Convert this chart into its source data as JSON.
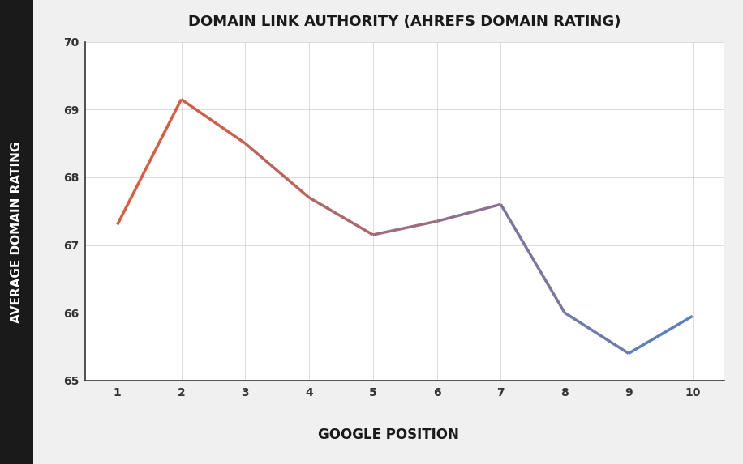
{
  "x": [
    1,
    2,
    3,
    4,
    5,
    6,
    7,
    8,
    9,
    10
  ],
  "y": [
    67.3,
    69.15,
    68.5,
    67.7,
    67.15,
    67.35,
    67.6,
    66.0,
    65.4,
    65.95
  ],
  "title": "DOMAIN LINK AUTHORITY (AHREFS DOMAIN RATING)",
  "xlabel": "GOOGLE POSITION",
  "ylabel": "AVERAGE DOMAIN RATING",
  "ylim": [
    65,
    70
  ],
  "xlim": [
    0.5,
    10.5
  ],
  "yticks": [
    65,
    66,
    67,
    68,
    69,
    70
  ],
  "xticks": [
    1,
    2,
    3,
    4,
    5,
    6,
    7,
    8,
    9,
    10
  ],
  "color_start": "#E05A3A",
  "color_end": "#5B7FBF",
  "bg_outer": "#F0F0F0",
  "bg_plot": "#FFFFFF",
  "left_bar_color": "#1A1A1A",
  "title_fontsize": 13,
  "axis_label_fontsize": 11,
  "tick_fontsize": 10,
  "line_width": 2.5
}
